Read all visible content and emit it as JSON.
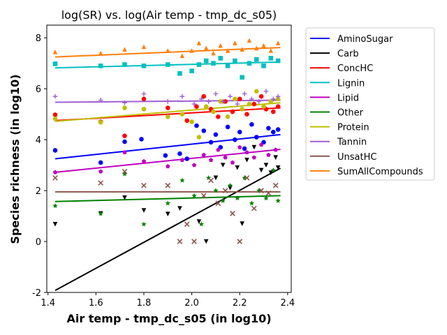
{
  "chart_data": {
    "type": "scatter",
    "title": "log(SR) vs. log(Air temp - tmp_dc_s05)",
    "xlabel": "Air temp - tmp_dc_s05 (in log10)",
    "ylabel": "Species richness (in log10)",
    "xlim": [
      1.395,
      2.415
    ],
    "ylim": [
      -2.0,
      8.5
    ],
    "xticks": [
      "1.4",
      "1.6",
      "1.8",
      "2.0",
      "2.2",
      "2.4"
    ],
    "yticks": [
      "-2",
      "0",
      "2",
      "4",
      "6",
      "8"
    ],
    "grid": false,
    "legend_position": "outside-right",
    "series": [
      {
        "name": "AminoSugar",
        "color": "#0000ff",
        "marker": "circle",
        "fit": [
          [
            1.43,
            3.25
          ],
          [
            2.37,
            4.2
          ]
        ],
        "points": [
          [
            1.43,
            3.58
          ],
          [
            1.62,
            3.1
          ],
          [
            1.72,
            3.92
          ],
          [
            1.79,
            4.02
          ],
          [
            1.89,
            3.38
          ],
          [
            1.95,
            3.45
          ],
          [
            1.98,
            3.25
          ],
          [
            2.02,
            4.55
          ],
          [
            2.05,
            4.35
          ],
          [
            2.08,
            3.9
          ],
          [
            2.1,
            4.2
          ],
          [
            2.12,
            3.7
          ],
          [
            2.15,
            4.5
          ],
          [
            2.18,
            4.0
          ],
          [
            2.2,
            4.3
          ],
          [
            2.22,
            3.65
          ],
          [
            2.25,
            4.6
          ],
          [
            2.27,
            4.1
          ],
          [
            2.3,
            3.9
          ],
          [
            2.32,
            4.45
          ],
          [
            2.34,
            4.3
          ],
          [
            2.36,
            4.4
          ]
        ]
      },
      {
        "name": "Carb",
        "color": "#000000",
        "marker": "triangle-down",
        "fit": [
          [
            1.43,
            -1.92
          ],
          [
            2.37,
            2.88
          ]
        ],
        "points": [
          [
            1.43,
            0.68
          ],
          [
            1.62,
            1.1
          ],
          [
            1.72,
            1.72
          ],
          [
            1.8,
            1.22
          ],
          [
            1.9,
            1.08
          ],
          [
            1.95,
            1.3
          ],
          [
            2.03,
            0.78
          ],
          [
            2.06,
            0.0
          ],
          [
            2.1,
            2.5
          ],
          [
            2.13,
            3.0
          ],
          [
            2.16,
            2.1
          ],
          [
            2.19,
            2.9
          ],
          [
            2.21,
            0.7
          ],
          [
            2.23,
            3.2
          ],
          [
            2.26,
            3.7
          ],
          [
            2.29,
            2.8
          ],
          [
            2.31,
            3.0
          ],
          [
            2.33,
            2.7
          ],
          [
            2.35,
            3.3
          ],
          [
            2.36,
            2.9
          ]
        ]
      },
      {
        "name": "ConcHC",
        "color": "#ff0000",
        "marker": "circle",
        "fit": [
          [
            1.43,
            4.75
          ],
          [
            2.37,
            5.25
          ]
        ],
        "points": [
          [
            1.43,
            4.98
          ],
          [
            1.62,
            4.7
          ],
          [
            1.72,
            4.15
          ],
          [
            1.8,
            5.6
          ],
          [
            1.9,
            5.25
          ],
          [
            1.98,
            4.75
          ],
          [
            2.02,
            5.3
          ],
          [
            2.05,
            5.7
          ],
          [
            2.08,
            5.2
          ],
          [
            2.11,
            4.9
          ],
          [
            2.14,
            5.5
          ],
          [
            2.17,
            5.1
          ],
          [
            2.2,
            5.6
          ],
          [
            2.23,
            5.0
          ],
          [
            2.26,
            5.4
          ],
          [
            2.29,
            5.7
          ],
          [
            2.31,
            5.2
          ],
          [
            2.34,
            5.1
          ],
          [
            2.36,
            5.3
          ]
        ]
      },
      {
        "name": "Lignin",
        "color": "#00bfbf",
        "marker": "square",
        "fit": [
          [
            1.43,
            6.82
          ],
          [
            2.37,
            7.05
          ]
        ],
        "points": [
          [
            1.43,
            6.98
          ],
          [
            1.62,
            6.9
          ],
          [
            1.72,
            6.95
          ],
          [
            1.8,
            6.9
          ],
          [
            1.9,
            6.95
          ],
          [
            1.95,
            6.6
          ],
          [
            2.0,
            6.7
          ],
          [
            2.03,
            6.95
          ],
          [
            2.06,
            7.1
          ],
          [
            2.09,
            7.0
          ],
          [
            2.12,
            7.2
          ],
          [
            2.15,
            6.9
          ],
          [
            2.18,
            7.1
          ],
          [
            2.21,
            6.45
          ],
          [
            2.24,
            7.0
          ],
          [
            2.27,
            7.15
          ],
          [
            2.3,
            6.9
          ],
          [
            2.33,
            7.2
          ],
          [
            2.36,
            7.1
          ]
        ]
      },
      {
        "name": "Lipid",
        "color": "#bf00bf",
        "marker": "pentagon",
        "fit": [
          [
            1.43,
            2.72
          ],
          [
            2.37,
            3.62
          ]
        ],
        "points": [
          [
            1.43,
            2.72
          ],
          [
            1.62,
            2.75
          ],
          [
            1.72,
            3.5
          ],
          [
            1.8,
            3.15
          ],
          [
            1.9,
            2.95
          ],
          [
            1.96,
            3.2
          ],
          [
            2.01,
            3.0
          ],
          [
            2.05,
            3.4
          ],
          [
            2.08,
            3.2
          ],
          [
            2.11,
            3.6
          ],
          [
            2.14,
            3.3
          ],
          [
            2.17,
            3.1
          ],
          [
            2.2,
            3.7
          ],
          [
            2.23,
            3.5
          ],
          [
            2.26,
            3.3
          ],
          [
            2.29,
            3.8
          ],
          [
            2.32,
            3.4
          ],
          [
            2.35,
            3.6
          ]
        ]
      },
      {
        "name": "Other",
        "color": "#008000",
        "marker": "star",
        "fit": [
          [
            1.43,
            1.57
          ],
          [
            2.37,
            1.8
          ]
        ],
        "points": [
          [
            1.43,
            1.4
          ],
          [
            1.62,
            1.1
          ],
          [
            1.72,
            2.65
          ],
          [
            1.8,
            0.68
          ],
          [
            1.9,
            1.5
          ],
          [
            1.96,
            2.4
          ],
          [
            2.01,
            1.8
          ],
          [
            2.04,
            0.68
          ],
          [
            2.07,
            2.5
          ],
          [
            2.1,
            2.0
          ],
          [
            2.13,
            1.6
          ],
          [
            2.16,
            2.2
          ],
          [
            2.19,
            1.7
          ],
          [
            2.22,
            2.5
          ],
          [
            2.25,
            1.5
          ],
          [
            2.28,
            2.0
          ],
          [
            2.31,
            1.7
          ],
          [
            2.34,
            2.8
          ],
          [
            2.36,
            1.6
          ]
        ]
      },
      {
        "name": "Protein",
        "color": "#bfbf00",
        "marker": "circle",
        "fit": [
          [
            1.43,
            4.72
          ],
          [
            2.37,
            5.45
          ]
        ],
        "points": [
          [
            1.43,
            4.82
          ],
          [
            1.62,
            4.68
          ],
          [
            1.72,
            5.25
          ],
          [
            1.8,
            5.2
          ],
          [
            1.9,
            4.9
          ],
          [
            1.96,
            5.0
          ],
          [
            2.0,
            4.7
          ],
          [
            2.03,
            4.1
          ],
          [
            2.06,
            5.3
          ],
          [
            2.09,
            5.1
          ],
          [
            2.12,
            5.5
          ],
          [
            2.15,
            4.9
          ],
          [
            2.18,
            5.6
          ],
          [
            2.21,
            5.2
          ],
          [
            2.24,
            5.4
          ],
          [
            2.27,
            5.9
          ],
          [
            2.3,
            5.3
          ],
          [
            2.33,
            5.5
          ],
          [
            2.36,
            5.6
          ]
        ]
      },
      {
        "name": "Tannin",
        "color": "#9f5fcf",
        "marker": "plus",
        "fit": [
          [
            1.43,
            5.47
          ],
          [
            2.37,
            5.55
          ]
        ],
        "points": [
          [
            1.43,
            5.7
          ],
          [
            1.62,
            5.55
          ],
          [
            1.72,
            5.45
          ],
          [
            1.8,
            5.8
          ],
          [
            1.9,
            5.5
          ],
          [
            1.96,
            5.7
          ],
          [
            2.01,
            5.4
          ],
          [
            2.04,
            5.6
          ],
          [
            2.07,
            5.5
          ],
          [
            2.1,
            5.8
          ],
          [
            2.13,
            5.5
          ],
          [
            2.16,
            5.7
          ],
          [
            2.19,
            5.4
          ],
          [
            2.22,
            5.8
          ],
          [
            2.25,
            5.6
          ],
          [
            2.28,
            5.5
          ],
          [
            2.31,
            5.9
          ],
          [
            2.34,
            5.6
          ],
          [
            2.36,
            5.7
          ]
        ]
      },
      {
        "name": "UnsatHC",
        "color": "#8c564b",
        "marker": "x",
        "fit": [
          [
            1.43,
            1.95
          ],
          [
            2.37,
            1.95
          ]
        ],
        "points": [
          [
            1.43,
            2.5
          ],
          [
            1.62,
            2.3
          ],
          [
            1.72,
            2.75
          ],
          [
            1.8,
            2.2
          ],
          [
            1.9,
            2.2
          ],
          [
            1.95,
            0.0
          ],
          [
            1.98,
            0.68
          ],
          [
            2.01,
            0.0
          ],
          [
            2.05,
            1.8
          ],
          [
            2.08,
            2.4
          ],
          [
            2.11,
            1.5
          ],
          [
            2.14,
            2.0
          ],
          [
            2.17,
            1.1
          ],
          [
            2.2,
            0.0
          ],
          [
            2.23,
            2.5
          ],
          [
            2.26,
            1.3
          ],
          [
            2.29,
            2.0
          ],
          [
            2.32,
            1.9
          ],
          [
            2.35,
            2.2
          ]
        ]
      },
      {
        "name": "SumAllCompounds",
        "color": "#ff7f0e",
        "marker": "triangle-up",
        "fit": [
          [
            1.43,
            7.25
          ],
          [
            2.37,
            7.62
          ]
        ],
        "points": [
          [
            1.43,
            7.45
          ],
          [
            1.62,
            7.4
          ],
          [
            1.72,
            7.55
          ],
          [
            1.8,
            7.65
          ],
          [
            1.9,
            7.5
          ],
          [
            1.96,
            7.3
          ],
          [
            2.0,
            7.5
          ],
          [
            2.03,
            7.8
          ],
          [
            2.06,
            7.6
          ],
          [
            2.09,
            7.4
          ],
          [
            2.12,
            7.7
          ],
          [
            2.15,
            7.5
          ],
          [
            2.18,
            7.8
          ],
          [
            2.21,
            7.55
          ],
          [
            2.24,
            7.9
          ],
          [
            2.27,
            7.6
          ],
          [
            2.3,
            7.7
          ],
          [
            2.33,
            7.5
          ],
          [
            2.36,
            7.8
          ]
        ]
      }
    ]
  }
}
